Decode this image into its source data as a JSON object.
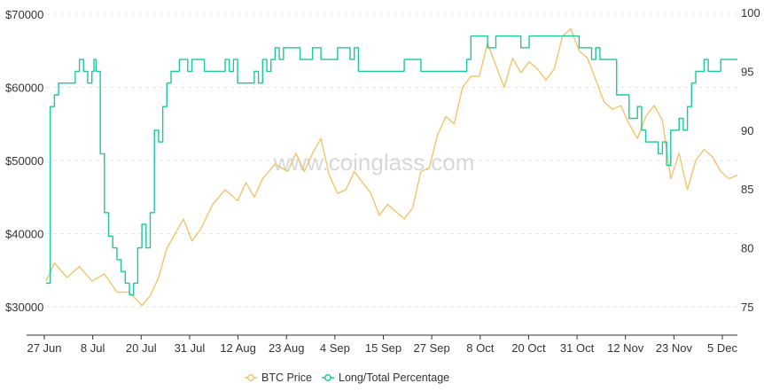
{
  "chart_data": {
    "type": "line",
    "title": "",
    "watermark": "www.coinglass.com",
    "x_ticks": [
      "27 Jun",
      "8 Jul",
      "20 Jul",
      "31 Jul",
      "12 Aug",
      "23 Aug",
      "4 Sep",
      "15 Sep",
      "27 Sep",
      "8 Oct",
      "20 Oct",
      "31 Oct",
      "12 Nov",
      "23 Nov",
      "5 Dec"
    ],
    "y_left": {
      "ticks": [
        "$30000",
        "$40000",
        "$50000",
        "$60000",
        "$70000"
      ],
      "values": [
        30000,
        40000,
        50000,
        60000,
        70000
      ],
      "ylim": [
        30000,
        70000
      ]
    },
    "y_right": {
      "ticks": [
        "75",
        "80",
        "85",
        "90",
        "95",
        "100"
      ],
      "values": [
        75,
        80,
        85,
        90,
        95,
        100
      ],
      "ylim": [
        75,
        100
      ]
    },
    "grid": true,
    "legend_placement": "bottom",
    "series": [
      {
        "name": "BTC Price",
        "axis": "left",
        "color": "#f2c46d",
        "x": [
          0,
          2,
          5,
          8,
          11,
          14,
          17,
          20,
          23,
          25,
          27,
          29,
          31,
          33,
          35,
          37,
          40,
          43,
          46,
          48,
          50,
          52,
          55,
          58,
          60,
          62,
          64,
          66,
          68,
          70,
          72,
          74,
          76,
          78,
          80,
          82,
          84,
          86,
          88,
          90,
          92,
          94,
          96,
          98,
          100,
          102,
          104,
          106,
          108,
          110,
          112,
          114,
          116,
          118,
          120,
          122,
          124,
          126,
          128,
          130,
          132,
          134,
          136,
          138,
          140,
          142,
          144,
          146,
          148,
          150,
          152,
          154,
          156,
          158,
          160,
          162,
          164,
          166
        ],
        "values": [
          33500,
          36000,
          34000,
          35500,
          33500,
          34500,
          32000,
          32000,
          30200,
          31500,
          34000,
          38000,
          40000,
          42000,
          39000,
          40500,
          44000,
          46000,
          44500,
          47000,
          45000,
          47500,
          49500,
          48500,
          51000,
          48500,
          51000,
          53000,
          48000,
          45500,
          46000,
          48500,
          47000,
          45500,
          42500,
          44000,
          43000,
          42000,
          43500,
          48500,
          49000,
          53500,
          56000,
          55000,
          60000,
          61500,
          61500,
          66000,
          63000,
          60000,
          64000,
          62000,
          63500,
          62500,
          61000,
          62500,
          67000,
          68000,
          65000,
          64000,
          61000,
          58000,
          57000,
          57500,
          55000,
          53000,
          56000,
          57500,
          55500,
          47500,
          51000,
          46000,
          50000,
          51500,
          50500,
          48500,
          47500,
          48000
        ]
      },
      {
        "name": "Long/Total Percentage",
        "axis": "right",
        "color": "#1cc99a",
        "x": [
          0,
          1,
          2,
          3,
          7,
          8,
          9,
          10,
          11,
          11.5,
          12,
          13,
          14,
          15,
          16,
          17,
          18,
          19,
          20,
          21,
          22,
          23,
          24,
          25,
          26,
          27,
          28,
          29,
          30,
          32,
          34,
          35,
          36,
          38,
          42,
          43,
          44,
          45,
          46,
          50,
          51,
          52,
          53,
          54,
          55,
          56,
          57,
          60,
          61,
          62,
          64,
          66,
          70,
          72,
          73,
          74,
          75,
          78,
          86,
          90,
          100,
          101,
          102,
          104,
          106,
          108,
          110,
          112,
          114,
          116,
          120,
          125,
          128,
          129,
          130,
          131,
          132,
          133,
          134,
          137,
          140,
          142,
          143,
          144,
          145,
          146,
          147,
          148,
          149,
          150,
          152,
          153,
          154,
          155,
          156,
          157,
          158,
          159,
          160,
          162,
          164,
          166
        ],
        "values": [
          77,
          92,
          93,
          94,
          95,
          96,
          95,
          94,
          95,
          96,
          95,
          88,
          83,
          81,
          80,
          79,
          78,
          77,
          76,
          77,
          80,
          82,
          80,
          83,
          90,
          89,
          92,
          94,
          95,
          96,
          95,
          96,
          96,
          95,
          95,
          96,
          95,
          96,
          94,
          95,
          94,
          96,
          95,
          96,
          97,
          96,
          97,
          97,
          96,
          96,
          97,
          96,
          97,
          97,
          96,
          97,
          95,
          95,
          96,
          95,
          95,
          96,
          98,
          98,
          97,
          98,
          98,
          98,
          97,
          98,
          98,
          98,
          97,
          97,
          97,
          96,
          97,
          96,
          96,
          93,
          91,
          92,
          90,
          89,
          89,
          89,
          88,
          89,
          87,
          90,
          91,
          90,
          92,
          94,
          95,
          95,
          96,
          95,
          95,
          96,
          96,
          96
        ]
      }
    ]
  }
}
